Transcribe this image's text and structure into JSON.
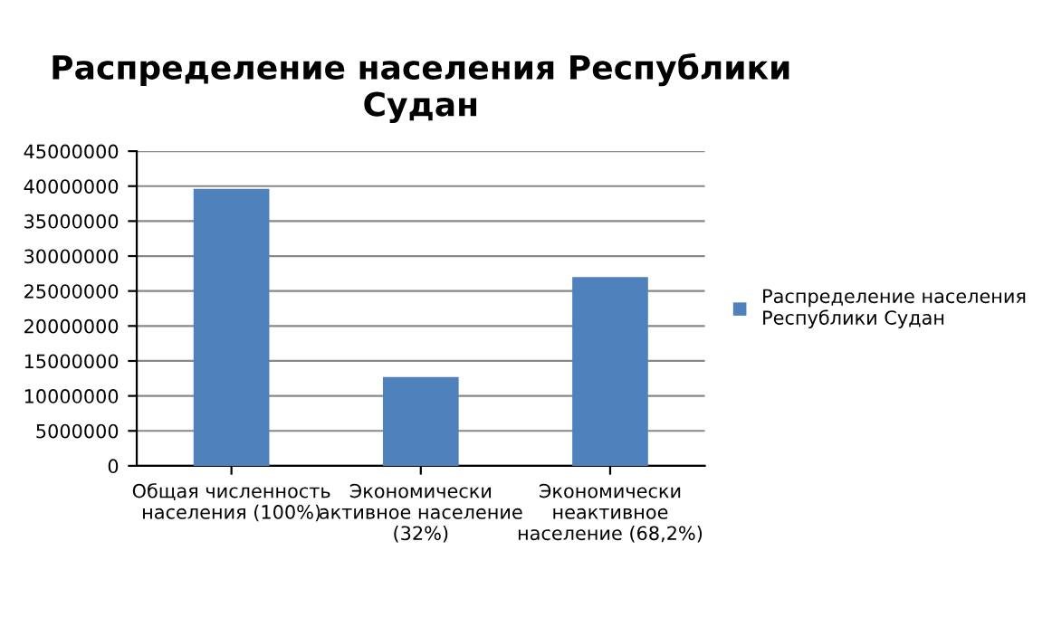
{
  "chart_data": {
    "type": "bar",
    "title": "Распределение населения Республики Судан",
    "categories": [
      "Общая численность населения (100%)",
      "Экономически активное население (32%)",
      "Экономически неактивное население (68,2%)"
    ],
    "series": [
      {
        "name": "Распределение населения Республики Судан",
        "color": "#4f81bd",
        "values": [
          39600000,
          12700000,
          27000000
        ]
      }
    ],
    "ylim": [
      0,
      45000000
    ],
    "yticks": [
      0,
      5000000,
      10000000,
      15000000,
      20000000,
      25000000,
      30000000,
      35000000,
      40000000,
      45000000
    ],
    "grid": "y",
    "legend": "right"
  }
}
